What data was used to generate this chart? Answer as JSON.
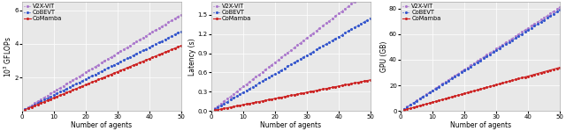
{
  "agents_start": 1,
  "agents_end": 50,
  "agents_n": 50,
  "color_v2xvit": "#aa77cc",
  "color_cobevt": "#3355cc",
  "color_comamba": "#cc2222",
  "linestyle_v2xvit": "dotted",
  "linestyle_cobevt": "dotted",
  "linestyle_comamba": "solid",
  "linewidth": 0.8,
  "markersize": 1.2,
  "label_v2xvit": "V2X-ViT",
  "label_cobevt": "CoBEVT",
  "label_comamba": "CoMamba",
  "ylabel1": "$10^3$ GFLOPs",
  "ylabel2": "Latency (s)",
  "ylabel3": "GPU (GB)",
  "xlabel": "Number of agents",
  "gflops_v2xvit_a": 0.0,
  "gflops_v2xvit_b": 0.115,
  "gflops_cobevt_a": 0.0,
  "gflops_cobevt_b": 0.095,
  "gflops_comamba_a": 0.0,
  "gflops_comamba_b": 0.078,
  "latency_v2xvit_a": 0.0,
  "latency_v2xvit_b": 0.038,
  "latency_cobevt_a": 0.0,
  "latency_cobevt_b": 0.029,
  "latency_comamba_a": 0.0,
  "latency_comamba_b": 0.0097,
  "gpu_v2xvit_a": 0.0,
  "gpu_v2xvit_b": 1.62,
  "gpu_cobevt_a": 0.0,
  "gpu_cobevt_b": 1.58,
  "gpu_comamba_a": 0.0,
  "gpu_comamba_b": 0.68,
  "ylim1": [
    0,
    6.5
  ],
  "ylim2": [
    0.0,
    1.7
  ],
  "ylim3": [
    0,
    85
  ],
  "yticks1": [
    2.0,
    4.0,
    6.0
  ],
  "yticks2": [
    0.0,
    0.3,
    0.6,
    0.9,
    1.2,
    1.5
  ],
  "yticks3": [
    0,
    20,
    40,
    60,
    80
  ],
  "xticks": [
    0,
    10,
    20,
    30,
    40,
    50
  ],
  "xlim": [
    1,
    50
  ],
  "bg_color": "#e8e8e8",
  "fig_width": 6.4,
  "fig_height": 1.49,
  "fontsize": 5.5,
  "legend_fontsize": 4.8
}
